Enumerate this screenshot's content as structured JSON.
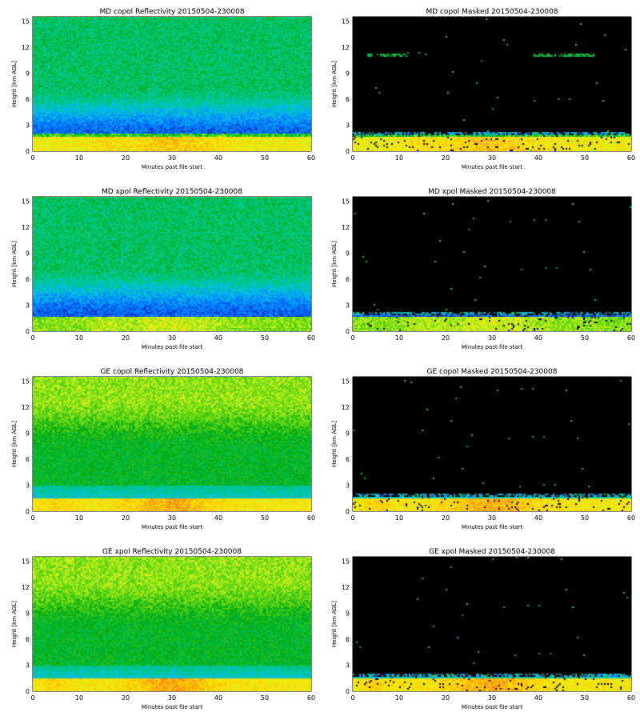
{
  "figure": {
    "x_axis": {
      "label": "Minutes past file start",
      "ticks": [
        0,
        10,
        20,
        30,
        40,
        50,
        60
      ],
      "range": [
        0,
        60
      ]
    },
    "y_axis": {
      "label": "Height [km AGL]",
      "ticks": [
        0,
        3,
        6,
        9,
        12,
        15
      ],
      "tick_labels": [
        "0",
        "3",
        "6",
        "9",
        "12",
        "15"
      ],
      "range": [
        0,
        15.5
      ]
    }
  },
  "colors": {
    "background": "#ffffff",
    "masked_background": "#000000"
  },
  "chart_data": [
    {
      "type": "heatmap",
      "title": "MD copol Reflectivity 20150504-230008",
      "xlabel": "Minutes past file start",
      "ylabel": "Height [km AGL]",
      "xlim": [
        0,
        60
      ],
      "ylim": [
        0,
        15.5
      ],
      "masked": false,
      "colormap": "rainbow",
      "features": [
        {
          "height_km": [
            0,
            1.7
          ],
          "level": "high"
        },
        {
          "height_km": [
            1.7,
            5
          ],
          "level": "low"
        },
        {
          "height_km": [
            5,
            15.5
          ],
          "level": "moderate-low"
        }
      ]
    },
    {
      "type": "heatmap",
      "title": "MD copol Masked 20150504-230008",
      "xlabel": "Minutes past file start",
      "ylabel": "Height [km AGL]",
      "xlim": [
        0,
        60
      ],
      "ylim": [
        0,
        15.5
      ],
      "masked": true,
      "colormap": "rainbow",
      "features": [
        {
          "height_km": [
            0,
            2.2
          ],
          "level": "signal"
        },
        {
          "height_km": [
            10.9,
            11.2
          ],
          "minutes": [
            3,
            12
          ],
          "level": "cloud"
        },
        {
          "height_km": [
            10.8,
            11.3
          ],
          "minutes": [
            39,
            52
          ],
          "level": "cloud"
        }
      ]
    },
    {
      "type": "heatmap",
      "title": "MD xpol Reflectivity 20150504-230008",
      "xlabel": "Minutes past file start",
      "ylabel": "Height [km AGL]",
      "xlim": [
        0,
        60
      ],
      "ylim": [
        0,
        15.5
      ],
      "masked": false,
      "colormap": "rainbow",
      "features": [
        {
          "height_km": [
            0,
            1.5
          ],
          "level": "moderate"
        },
        {
          "height_km": [
            1.5,
            5
          ],
          "level": "low"
        },
        {
          "height_km": [
            5,
            15.5
          ],
          "level": "moderate-low"
        }
      ]
    },
    {
      "type": "heatmap",
      "title": "MD xpol Masked 20150504-230008",
      "xlabel": "Minutes past file start",
      "ylabel": "Height [km AGL]",
      "xlim": [
        0,
        60
      ],
      "ylim": [
        0,
        15.5
      ],
      "masked": true,
      "colormap": "rainbow",
      "features": [
        {
          "height_km": [
            0,
            2.2
          ],
          "level": "signal"
        }
      ]
    },
    {
      "type": "heatmap",
      "title": "GE copol Reflectivity 20150504-230008",
      "xlabel": "Minutes past file start",
      "ylabel": "Height [km AGL]",
      "xlim": [
        0,
        60
      ],
      "ylim": [
        0,
        15.5
      ],
      "masked": false,
      "colormap": "rainbow",
      "features": [
        {
          "height_km": [
            0,
            1.5
          ],
          "level": "high"
        },
        {
          "height_km": [
            1.5,
            3
          ],
          "level": "low"
        },
        {
          "height_km": [
            3,
            9
          ],
          "level": "moderate"
        },
        {
          "height_km": [
            9,
            15.5
          ],
          "level": "moderate-high"
        }
      ]
    },
    {
      "type": "heatmap",
      "title": "GE copol Masked 20150504-230008",
      "xlabel": "Minutes past file start",
      "ylabel": "Height [km AGL]",
      "xlim": [
        0,
        60
      ],
      "ylim": [
        0,
        15.5
      ],
      "masked": true,
      "colormap": "rainbow",
      "features": [
        {
          "height_km": [
            0,
            2.0
          ],
          "level": "signal"
        }
      ]
    },
    {
      "type": "heatmap",
      "title": "GE xpol Reflectivity 20150504-230008",
      "xlabel": "Minutes past file start",
      "ylabel": "Height [km AGL]",
      "xlim": [
        0,
        60
      ],
      "ylim": [
        0,
        15.5
      ],
      "masked": false,
      "colormap": "rainbow",
      "features": [
        {
          "height_km": [
            0,
            1.5
          ],
          "level": "high"
        },
        {
          "height_km": [
            1.5,
            3
          ],
          "level": "low"
        },
        {
          "height_km": [
            3,
            9
          ],
          "level": "moderate"
        },
        {
          "height_km": [
            9,
            15.5
          ],
          "level": "moderate-high"
        }
      ]
    },
    {
      "type": "heatmap",
      "title": "GE xpol Masked 20150504-230008",
      "xlabel": "Minutes past file start",
      "ylabel": "Height [km AGL]",
      "xlim": [
        0,
        60
      ],
      "ylim": [
        0,
        15.5
      ],
      "masked": true,
      "colormap": "rainbow",
      "features": [
        {
          "height_km": [
            0,
            2.0
          ],
          "level": "signal"
        }
      ]
    }
  ]
}
